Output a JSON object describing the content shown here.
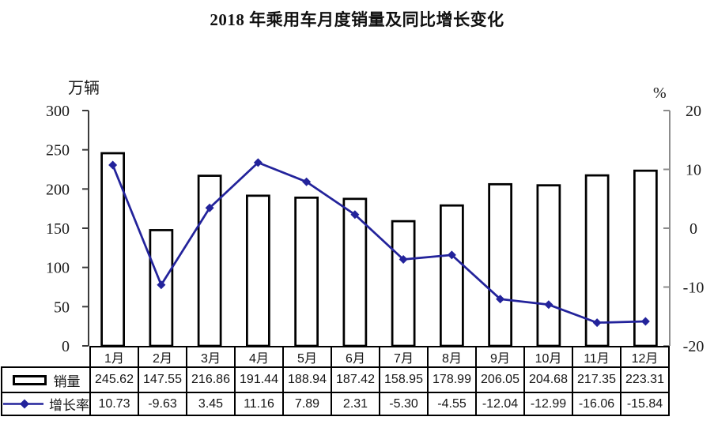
{
  "chart_data": {
    "type": "combo-bar-line",
    "title": "2018 年乘用车月度销量及同比增长变化",
    "categories": [
      "1月",
      "2月",
      "3月",
      "4月",
      "5月",
      "6月",
      "7月",
      "8月",
      "9月",
      "10月",
      "11月",
      "12月"
    ],
    "series": [
      {
        "name": "销量",
        "type": "bar",
        "unit": "万辆",
        "axis": "left",
        "values": [
          245.62,
          147.55,
          216.86,
          191.44,
          188.94,
          187.42,
          158.95,
          178.99,
          206.05,
          204.68,
          217.35,
          223.31
        ]
      },
      {
        "name": "增长率",
        "type": "line",
        "unit": "%",
        "axis": "right",
        "values": [
          10.73,
          -9.63,
          3.45,
          11.16,
          7.89,
          2.31,
          -5.3,
          -4.55,
          -12.04,
          -12.99,
          -16.06,
          -15.84
        ]
      }
    ],
    "left_axis": {
      "label": "万辆",
      "min": 0,
      "max": 300,
      "ticks": [
        0,
        50,
        100,
        150,
        200,
        250,
        300
      ]
    },
    "right_axis": {
      "label": "%",
      "min": -20,
      "max": 20,
      "ticks": [
        -20,
        -10,
        0,
        10,
        20
      ]
    },
    "grid": false,
    "legend_position": "bottom-table",
    "colors": {
      "bar_fill": "#ffffff",
      "bar_border": "#000000",
      "line": "#23239b",
      "left_axis_line": "#3c3c3c",
      "right_axis_line": "#8c8c8c",
      "text": "#1b1b1b"
    }
  }
}
